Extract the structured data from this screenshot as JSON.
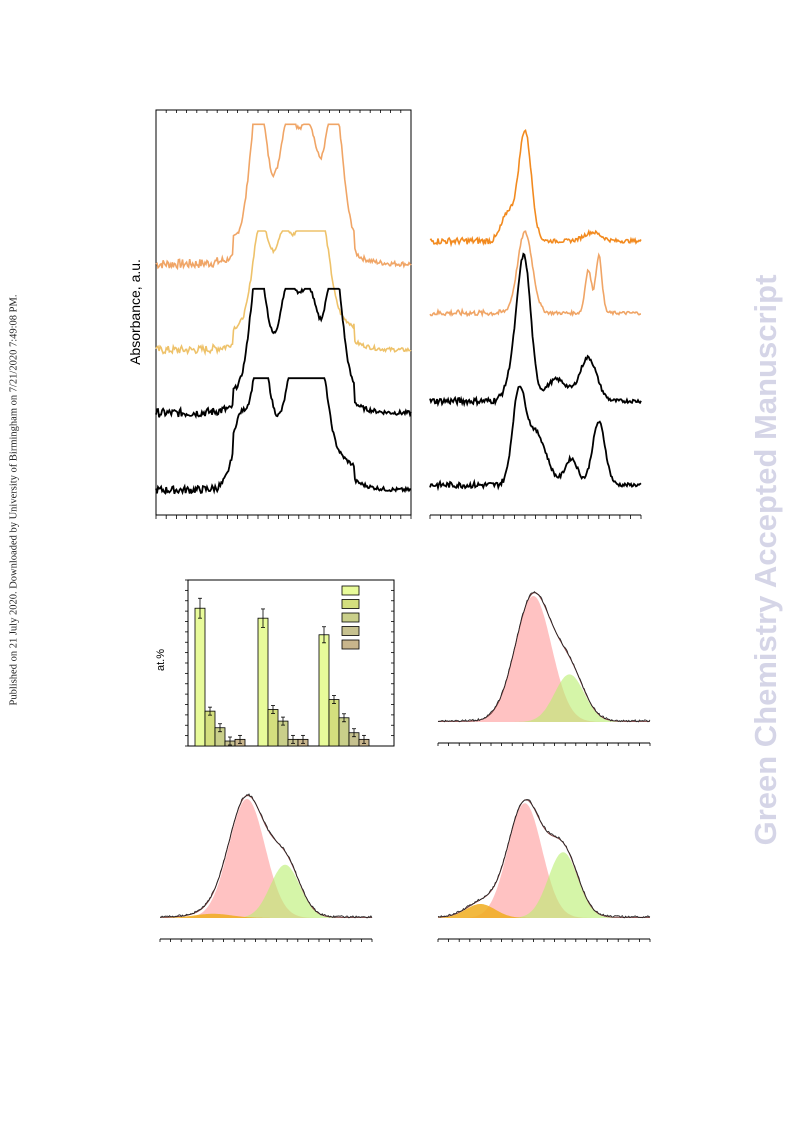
{
  "side_note": "Published on 21 July 2020. Downloaded by University of Birmingham on 7/21/2020 7:49:08 PM.",
  "watermark": "Green Chemistry Accepted Manuscript",
  "panel_a": {
    "ylabel": "Absorbance, a.u."
  },
  "chart_data": [
    {
      "type": "line",
      "panel": "top-left",
      "ylabel": "Absorbance, a.u.",
      "series": [
        {
          "color": "#f0a566",
          "peaks": [
            [
              0.4,
              1.0
            ],
            [
              0.52,
              0.6
            ],
            [
              0.6,
              0.55
            ],
            [
              0.7,
              1.0
            ]
          ]
        },
        {
          "color": "#eec26a",
          "peaks": [
            [
              0.41,
              0.85
            ],
            [
              0.5,
              0.55
            ],
            [
              0.58,
              0.6
            ],
            [
              0.65,
              0.75
            ]
          ]
        },
        {
          "color": "#000000",
          "peaks": [
            [
              0.4,
              1.0
            ],
            [
              0.52,
              0.6
            ],
            [
              0.6,
              0.55
            ],
            [
              0.7,
              1.0
            ]
          ]
        },
        {
          "color": "#000000",
          "peaks": [
            [
              0.33,
              0.5
            ],
            [
              0.41,
              1.0
            ],
            [
              0.55,
              0.7
            ],
            [
              0.64,
              0.8
            ]
          ]
        }
      ]
    },
    {
      "type": "line",
      "panel": "top-right",
      "series": [
        {
          "color": "#f28a1f"
        },
        {
          "color": "#f0a566"
        },
        {
          "color": "#000000"
        },
        {
          "color": "#000000"
        }
      ]
    },
    {
      "type": "bar",
      "panel": "middle-left",
      "ylabel": "at.%",
      "groups": 3,
      "series": [
        {
          "color": "#e8fb9a",
          "values": [
            0.83,
            0.77,
            0.67
          ]
        },
        {
          "color": "#d4df7e",
          "values": [
            0.21,
            0.22,
            0.28
          ]
        },
        {
          "color": "#c9cf8a",
          "values": [
            0.11,
            0.15,
            0.17
          ]
        },
        {
          "color": "#c6c18f",
          "values": [
            0.03,
            0.04,
            0.08
          ]
        },
        {
          "color": "#c8b58c",
          "values": [
            0.04,
            0.04,
            0.04
          ]
        }
      ],
      "error_bars": true,
      "legend_position": "top-right"
    },
    {
      "type": "area",
      "panel": "middle-right",
      "components": [
        {
          "color": "#ff9a9a",
          "center": 0.45,
          "amplitude": 0.9,
          "width": 0.085
        },
        {
          "color": "#b9ef6e",
          "center": 0.62,
          "amplitude": 0.34,
          "width": 0.07
        }
      ]
    },
    {
      "type": "area",
      "panel": "bottom-left",
      "components": [
        {
          "color": "#ff9a9a",
          "center": 0.41,
          "amplitude": 0.85,
          "width": 0.085
        },
        {
          "color": "#b9ef6e",
          "center": 0.59,
          "amplitude": 0.38,
          "width": 0.07
        },
        {
          "color": "#f0ad1f",
          "center": 0.25,
          "amplitude": 0.03,
          "width": 0.09
        }
      ]
    },
    {
      "type": "area",
      "panel": "bottom-right",
      "components": [
        {
          "color": "#ff9a9a",
          "center": 0.41,
          "amplitude": 0.82,
          "width": 0.08
        },
        {
          "color": "#b9ef6e",
          "center": 0.59,
          "amplitude": 0.47,
          "width": 0.07
        },
        {
          "color": "#f0ad1f",
          "center": 0.2,
          "amplitude": 0.1,
          "width": 0.07
        }
      ]
    }
  ]
}
